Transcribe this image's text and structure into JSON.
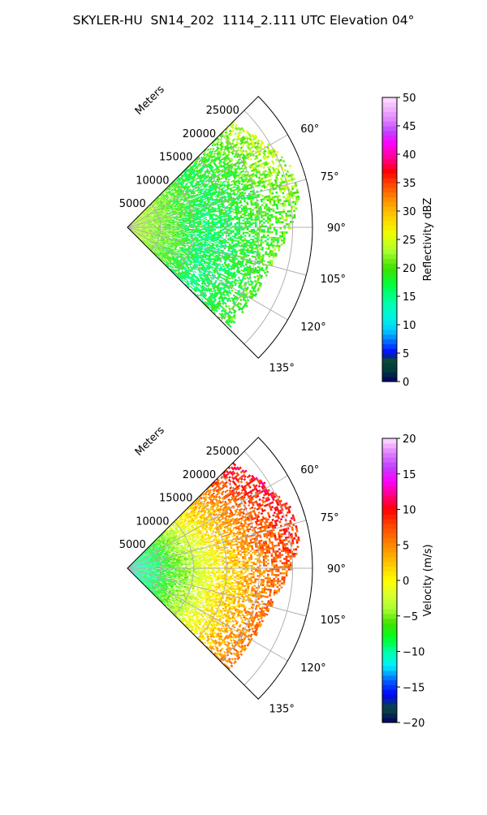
{
  "figure": {
    "title": "SKYLER-HU  SN14_202  1114_2.111 UTC Elevation 04°"
  },
  "chart_data": [
    {
      "type": "heatmap",
      "subtype": "polar-sector (PPI radar sweep)",
      "title": "Reflectivity",
      "radial_label": "Meters",
      "radial_ticks": [
        5000,
        10000,
        15000,
        20000,
        25000
      ],
      "radial_tick_labels": [
        "5000",
        "10000",
        "15000",
        "20000",
        "25000"
      ],
      "r_max": 28000,
      "azimuth_range_deg": [
        45,
        135
      ],
      "azimuth_ticks": [
        60,
        75,
        90,
        105,
        120,
        135
      ],
      "azimuth_tick_labels": [
        "60°",
        "75°",
        "90°",
        "105°",
        "120°",
        "135°"
      ],
      "grid": true,
      "colorbar": {
        "label": "Reflectivity dBZ",
        "min": 0,
        "max": 50,
        "ticks": [
          0,
          5,
          10,
          15,
          20,
          25,
          30,
          35,
          40,
          45,
          50
        ],
        "tick_labels": [
          "0",
          "5",
          "10",
          "15",
          "20",
          "25",
          "30",
          "35",
          "40",
          "45",
          "50"
        ],
        "stops": [
          [
            0,
            "#000066"
          ],
          [
            2,
            "#003a3a"
          ],
          [
            4,
            "#0c4a3a"
          ],
          [
            5,
            "#0000ff"
          ],
          [
            7,
            "#0064ff"
          ],
          [
            9,
            "#00c8ff"
          ],
          [
            11,
            "#00f0e8"
          ],
          [
            14,
            "#00ffaa"
          ],
          [
            17,
            "#00ff40"
          ],
          [
            20,
            "#40e000"
          ],
          [
            23,
            "#a8ff30"
          ],
          [
            26,
            "#eeff00"
          ],
          [
            29,
            "#ffd000"
          ],
          [
            32,
            "#ff9000"
          ],
          [
            35,
            "#ff4000"
          ],
          [
            37,
            "#ff0000"
          ],
          [
            39,
            "#ff0080"
          ],
          [
            42,
            "#ff00ff"
          ],
          [
            44,
            "#c040ff"
          ],
          [
            46,
            "#e080ff"
          ],
          [
            50,
            "#ffe0ff"
          ]
        ]
      },
      "field_profile": {
        "range_m": [
          0,
          4000,
          8000,
          12000,
          16000,
          20000,
          24000,
          28000
        ],
        "value": [
          24,
          22,
          19,
          16,
          17,
          19,
          21,
          21
        ],
        "noise": 3.5,
        "north_edge_bias": 4
      }
    },
    {
      "type": "heatmap",
      "subtype": "polar-sector (PPI radar sweep)",
      "title": "Velocity",
      "radial_label": "Meters",
      "radial_ticks": [
        5000,
        10000,
        15000,
        20000,
        25000
      ],
      "radial_tick_labels": [
        "5000",
        "10000",
        "15000",
        "20000",
        "25000"
      ],
      "r_max": 28000,
      "azimuth_range_deg": [
        45,
        135
      ],
      "azimuth_ticks": [
        60,
        75,
        90,
        105,
        120,
        135
      ],
      "azimuth_tick_labels": [
        "60°",
        "75°",
        "90°",
        "105°",
        "120°",
        "135°"
      ],
      "grid": true,
      "colorbar": {
        "label": "Velocity (m/s)",
        "min": -20,
        "max": 20,
        "ticks": [
          -20,
          -15,
          -10,
          -5,
          0,
          5,
          10,
          15,
          20
        ],
        "tick_labels": [
          "−20",
          "−15",
          "−10",
          "−5",
          "0",
          "5",
          "10",
          "15",
          "20"
        ],
        "stops": [
          [
            -20,
            "#000066"
          ],
          [
            -18,
            "#0c4a3a"
          ],
          [
            -16,
            "#0000ff"
          ],
          [
            -14,
            "#0064ff"
          ],
          [
            -12,
            "#00f0ff"
          ],
          [
            -10,
            "#00ffaa"
          ],
          [
            -8,
            "#00ff20"
          ],
          [
            -6,
            "#40e000"
          ],
          [
            -4,
            "#a8ff30"
          ],
          [
            -2,
            "#d8ff30"
          ],
          [
            0,
            "#ffff00"
          ],
          [
            2,
            "#ffd000"
          ],
          [
            4,
            "#ffa000"
          ],
          [
            6,
            "#ff7000"
          ],
          [
            8,
            "#ff4000"
          ],
          [
            10,
            "#ff0000"
          ],
          [
            12,
            "#ff0080"
          ],
          [
            14,
            "#ff00ff"
          ],
          [
            16,
            "#c040ff"
          ],
          [
            18,
            "#e080ff"
          ],
          [
            20,
            "#ffe0ff"
          ]
        ]
      },
      "field_profile": {
        "range_m": [
          0,
          4000,
          8000,
          12000,
          16000,
          20000,
          24000,
          28000
        ],
        "value": [
          -11,
          -9,
          -5,
          -1,
          2,
          5,
          7,
          8
        ],
        "noise": 2.5,
        "north_edge_bias": 5
      }
    }
  ]
}
